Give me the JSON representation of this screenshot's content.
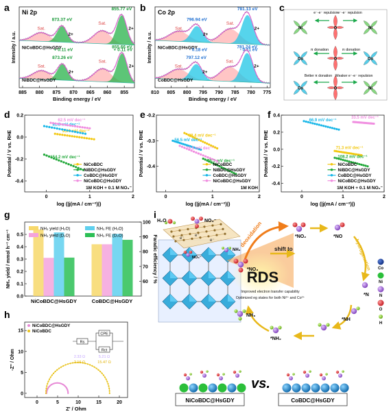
{
  "panels": {
    "a": "a",
    "b": "b",
    "c": "c",
    "d": "d",
    "e": "e",
    "f": "f",
    "g": "g",
    "h": "h",
    "i": "i"
  },
  "colors": {
    "ni_fill": "#27b24a",
    "co_fill": "#1ec6e6",
    "envelope": "#e05ad0",
    "raw": "#8a8a8a",
    "sat": "#ff7f7f",
    "yellow": "#f2c812",
    "green": "#22a83a",
    "blue": "#1ab7e8",
    "pink": "#f08ee0",
    "blue_text": "#1f6fd1",
    "orange": "#f07d1a"
  },
  "xps": [
    {
      "id": "a",
      "title": "Ni 2p",
      "xlabel": "Binding energy / eV",
      "ylabel": "Intensity / a.u.",
      "xticks": [
        "885",
        "880",
        "875",
        "870",
        "865",
        "860",
        "855"
      ],
      "xlim": [
        886,
        852
      ],
      "top": {
        "name": "NiCoBDC@HsGDY",
        "peak_labels": [
          "873.37 eV",
          "855.77 eV"
        ],
        "shift_labels": [
          "+ 0.11 eV",
          "+ 0.11 eV"
        ],
        "sat_labels": [
          "Sat.",
          "Sat."
        ],
        "ox_labels": [
          "2+",
          "2+"
        ],
        "peaks": [
          {
            "c": 855.77,
            "w": 1.5,
            "h": 1.0
          },
          {
            "c": 873.37,
            "w": 1.5,
            "h": 0.55
          }
        ],
        "sats": [
          {
            "c": 861.5,
            "w": 2.5,
            "h": 0.45
          },
          {
            "c": 879.5,
            "w": 2.5,
            "h": 0.3
          }
        ]
      },
      "bottom": {
        "name": "NiBDC@HsGDY",
        "peak_labels": [
          "873.26 eV",
          "855.66 eV"
        ],
        "sat_labels": [
          "Sat.",
          "Sat."
        ],
        "ox_labels": [
          "2+",
          "2+"
        ],
        "peaks": [
          {
            "c": 855.66,
            "w": 1.5,
            "h": 1.0
          },
          {
            "c": 873.26,
            "w": 1.5,
            "h": 0.55
          }
        ],
        "sats": [
          {
            "c": 861.4,
            "w": 2.5,
            "h": 0.45
          },
          {
            "c": 879.4,
            "w": 2.5,
            "h": 0.3
          }
        ]
      }
    },
    {
      "id": "b",
      "title": "Co 2p",
      "xlabel": "Binding energy / eV",
      "ylabel": "Intensity / a.u.",
      "xticks": [
        "810",
        "805",
        "800",
        "795",
        "790",
        "785",
        "780",
        "775"
      ],
      "xlim": [
        810,
        774
      ],
      "top": {
        "name": "NiCoBDC@HsGDY",
        "peak_labels": [
          "796.94 eV",
          "781.13 eV"
        ],
        "shift_labels": [
          "- 0.18 eV",
          "- 0.11 eV"
        ],
        "sat_labels": [
          "Sat.",
          "Sat."
        ],
        "ox_labels": [
          "2+",
          "2+"
        ],
        "peaks": [
          {
            "c": 781.13,
            "w": 1.8,
            "h": 1.0
          },
          {
            "c": 796.94,
            "w": 1.8,
            "h": 0.55
          }
        ],
        "sats": [
          {
            "c": 786.5,
            "w": 3.0,
            "h": 0.5
          },
          {
            "c": 802.5,
            "w": 3.0,
            "h": 0.35
          }
        ]
      },
      "bottom": {
        "name": "CoBDC@HsGDY",
        "peak_labels": [
          "797.12 eV",
          "781.24 eV"
        ],
        "sat_labels": [
          "Sat.",
          "Sat."
        ],
        "ox_labels": [
          "2+",
          "2+"
        ],
        "peaks": [
          {
            "c": 781.24,
            "w": 1.8,
            "h": 1.0
          },
          {
            "c": 797.12,
            "w": 1.8,
            "h": 0.55
          }
        ],
        "sats": [
          {
            "c": 786.6,
            "w": 3.0,
            "h": 0.5
          },
          {
            "c": 802.6,
            "w": 3.0,
            "h": 0.35
          }
        ]
      }
    }
  ],
  "schematic_c": {
    "row1": {
      "label": "e⁻-e⁻ repulsion",
      "label2": "e⁻-e⁻ repulsion",
      "atoms": [
        "Ni",
        "O",
        "Ni"
      ]
    },
    "row2": {
      "labels": [
        "π donation",
        "π donation"
      ],
      "atoms": [
        "Co",
        "O",
        "Co"
      ]
    },
    "row3": {
      "labels": [
        "Better π donation",
        "Weaker e⁻-e⁻ repulsion"
      ],
      "atoms": [
        "Co",
        "O",
        "Ni"
      ]
    }
  },
  "chart_data": [
    {
      "type": "line",
      "panel": "d",
      "xlabel": "log (|j(mA / cm⁻²)|)",
      "ylabel": "Potential / V vs. RHE",
      "xlim": [
        -0.5,
        2
      ],
      "ylim": [
        -0.5,
        0.2
      ],
      "xticks": [
        0,
        1,
        2
      ],
      "yticks": [
        -0.4,
        -0.2,
        0.0,
        0.2
      ],
      "ytick_labels": [
        "-0.4",
        "-0.2",
        "0.0",
        "0.2"
      ],
      "condition": "1M KOH + 0.1 M NO₃⁻",
      "legend": [
        "NiCoBDC",
        "NiBDC@HsGDY",
        "CoBDC@HsGDY",
        "NiCoBDC@HsGDY"
      ],
      "series": [
        {
          "name": "NiCoBDC",
          "color": "#f2c812",
          "x": [
            0.2,
            1.1
          ],
          "y": [
            0.03,
            -0.02
          ],
          "label": "95.4 mV dec⁻¹"
        },
        {
          "name": "NiBDC@HsGDY",
          "color": "#22a83a",
          "x": [
            -0.05,
            0.85
          ],
          "y": [
            -0.16,
            -0.3
          ],
          "label": "154.2 mV dec⁻¹"
        },
        {
          "name": "CoBDC@HsGDY",
          "color": "#1ab7e8",
          "x": [
            -0.05,
            0.9
          ],
          "y": [
            0.1,
            0.03
          ],
          "label": "81.3 mV dec⁻¹"
        },
        {
          "name": "NiCoBDC@HsGDY",
          "color": "#f08ee0",
          "x": [
            0.1,
            1.0
          ],
          "y": [
            0.13,
            0.08
          ],
          "label": "62.5 mV dec⁻¹"
        }
      ]
    },
    {
      "type": "line",
      "panel": "e",
      "xlabel": "log (|j(mA / cm⁻²)|)",
      "ylabel": "Potential / V vs. RHE",
      "xlim": [
        -0.2,
        2
      ],
      "ylim": [
        -0.5,
        -0.2
      ],
      "xticks": [
        0,
        1,
        2
      ],
      "yticks": [
        -0.4,
        -0.3,
        -0.2
      ],
      "ytick_labels": [
        "-0.4",
        "-0.3",
        "-0.2"
      ],
      "condition": "1M KOH",
      "legend": [
        "NiCoBDC",
        "NiBDC@HsGDY",
        "CoBDC@HsGDY",
        "NiCoBDC@HsGDY"
      ],
      "series": [
        {
          "name": "NiCoBDC",
          "color": "#f2c812",
          "x": [
            0.4,
            1.1
          ],
          "y": [
            -0.27,
            -0.33
          ],
          "label": "88.4 mV dec⁻¹"
        },
        {
          "name": "NiBDC@HsGDY",
          "color": "#22a83a",
          "x": [
            0.8,
            1.5
          ],
          "y": [
            -0.37,
            -0.43
          ],
          "label": "76.3 mV dec⁻¹"
        },
        {
          "name": "CoBDC@HsGDY",
          "color": "#1ab7e8",
          "x": [
            0.15,
            0.75
          ],
          "y": [
            -0.3,
            -0.335
          ],
          "label": "56.5 mV dec⁻¹"
        },
        {
          "name": "NiCoBDC@HsGDY",
          "color": "#f08ee0",
          "x": [
            0.3,
            1.1
          ],
          "y": [
            -0.32,
            -0.38
          ],
          "label": "76.5 mV dec⁻¹"
        }
      ]
    },
    {
      "type": "line",
      "panel": "f",
      "xlabel": "log (|j(mA / cm⁻²)|)",
      "ylabel": "Potential / V vs. RHE",
      "xlim": [
        -0.5,
        2
      ],
      "ylim": [
        -0.5,
        0.4
      ],
      "xticks": [
        0,
        1,
        2
      ],
      "yticks": [
        -0.4,
        -0.2,
        0.0,
        0.2,
        0.4
      ],
      "ytick_labels": [
        "-0.4",
        "-0.2",
        "0.0",
        "0.2",
        "0.4"
      ],
      "condition": "1M KOH + 0.1 M NO₂⁻",
      "legend": [
        "NiCoBDC",
        "NiBDC@HsGDY",
        "CoBDC@HsGDY",
        "NiCoBDC@HsGDY"
      ],
      "series": [
        {
          "name": "NiCoBDC",
          "color": "#f2c812",
          "x": [
            0.8,
            1.45
          ],
          "y": [
            -0.02,
            -0.07
          ],
          "label": "71.3 mV dec⁻¹"
        },
        {
          "name": "NiBDC@HsGDY",
          "color": "#22a83a",
          "x": [
            0.8,
            1.6
          ],
          "y": [
            -0.1,
            -0.2
          ],
          "label": "108.2 mV dec⁻¹"
        },
        {
          "name": "CoBDC@HsGDY",
          "color": "#1ab7e8",
          "x": [
            0.05,
            0.9
          ],
          "y": [
            0.33,
            0.23
          ],
          "label": "66.9 mV dec⁻¹"
        },
        {
          "name": "NiCoBDC@HsGDY",
          "color": "#f08ee0",
          "x": [
            1.25,
            1.75
          ],
          "y": [
            0.32,
            0.3
          ],
          "label": "33.5 mV dec⁻¹"
        }
      ]
    },
    {
      "type": "bar",
      "panel": "g",
      "ylabel": "NH₃ yield / mmol h⁻¹ cm⁻¹",
      "ylabel_right": "Faradic efficiency / %",
      "ylim": [
        0,
        0.6
      ],
      "yticks": [
        0.0,
        0.1,
        0.2,
        0.3,
        0.4,
        0.5
      ],
      "ytick_labels": [
        "0.0",
        "0.1",
        "0.2",
        "0.3",
        "0.4",
        "0.5"
      ],
      "ylim_right": [
        50,
        100
      ],
      "yticks_right": [
        60,
        70,
        80,
        90,
        100
      ],
      "categories": [
        "NiCoBDC@HsGDY",
        "CoBDC@HsGDY"
      ],
      "legend": [
        "NH₃ yield (H₂O)",
        "NH₃ yield (D₂O)",
        "NH₃ FE (H₂O)",
        "NH₃ FE (D₂O)"
      ],
      "series": [
        {
          "name": "NH₃ yield (H₂O)",
          "axis": "left",
          "color": "#f7d86a",
          "values": [
            0.54,
            0.42
          ]
        },
        {
          "name": "NH₃ yield (D₂O)",
          "axis": "left",
          "color": "#f5a3dc",
          "values": [
            0.31,
            0.42
          ]
        },
        {
          "name": "NH₃ FE (H₂O)",
          "axis": "right",
          "color": "#5fd0ee",
          "values": [
            93,
            92
          ]
        },
        {
          "name": "NH₃ FE (D₂O)",
          "axis": "right",
          "color": "#2bbf55",
          "values": [
            76,
            88
          ]
        }
      ]
    },
    {
      "type": "scatter",
      "panel": "h",
      "xlabel": "Z' / Ohm",
      "ylabel": "-Z'' / Ohm",
      "xlim": [
        -3,
        22
      ],
      "ylim": [
        -1,
        17
      ],
      "xticks": [
        0,
        5,
        10,
        15,
        20
      ],
      "yticks": [
        0,
        5,
        10,
        15
      ],
      "legend": [
        "NiCoBDC@HsGDY",
        "NiCoBDC"
      ],
      "circuit": {
        "rs": "Rs",
        "cpe": "CPE",
        "rct": "Rct"
      },
      "fit_values": {
        "rs_1": "2.33 Ω",
        "rs_2": "2.16 Ω",
        "rct_1": "5.21 Ω",
        "rct_2": "15.47 Ω"
      },
      "series": [
        {
          "name": "NiCoBDC@HsGDY",
          "color": "#e78ad6",
          "r0": 2.33,
          "r1": 7.54
        },
        {
          "name": "NiCoBDC",
          "color": "#e8c21a",
          "r0": 2.16,
          "r1": 17.63
        }
      ]
    }
  ],
  "panel_i": {
    "species": [
      "H₂O",
      "NO₃⁻",
      "*NO₃",
      "*NO₂",
      "*NO",
      "*N",
      "*NH",
      "*NH₂",
      "NH₃",
      "NH₃"
    ],
    "arrows": [
      "deoxidation",
      "shift to",
      "hydrogenation"
    ],
    "rds": "RDS",
    "rds_notes": [
      "Improved electron transfer capability",
      "Optimized eg states for both Ni²⁺ and Co²⁺"
    ],
    "legend_elements": [
      "Co",
      "Ni",
      "N",
      "O",
      "H"
    ],
    "elec": "e⁻",
    "compare": [
      "NiCoBDC@HsGDY",
      "vs.",
      "CoBDC@HsGDY"
    ]
  }
}
